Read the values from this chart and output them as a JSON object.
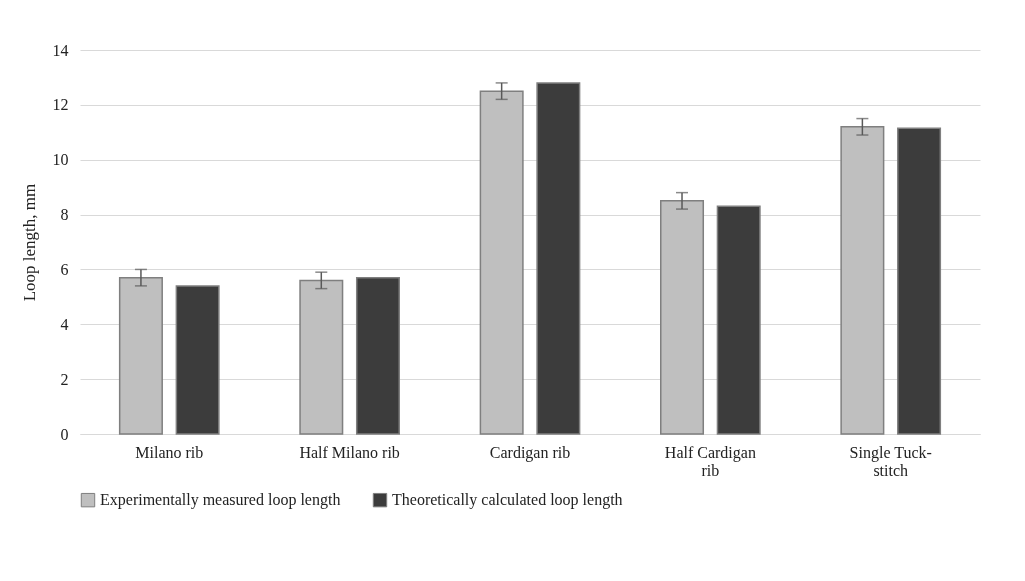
{
  "chart_data": {
    "type": "bar",
    "ylabel": "Loop length, mm",
    "categories": [
      "Milano rib",
      "Half Milano rib",
      "Cardigan rib",
      "Half Cardigan rib",
      "Single Tuck-stitch"
    ],
    "series": [
      {
        "name": "Experimentally measured loop length",
        "color": "#bfbfbf",
        "values": [
          5.7,
          5.6,
          12.5,
          8.5,
          11.2
        ],
        "errors": [
          0.3,
          0.3,
          0.3,
          0.3,
          0.3
        ]
      },
      {
        "name": "Theoretically calculated loop length",
        "color": "#3c3c3c",
        "values": [
          5.4,
          5.7,
          12.8,
          8.3,
          11.15
        ]
      }
    ],
    "ylim": [
      0,
      14
    ],
    "yticks": [
      0,
      2,
      4,
      6,
      8,
      10,
      12,
      14
    ],
    "grid": "y",
    "legend": "bottom"
  }
}
